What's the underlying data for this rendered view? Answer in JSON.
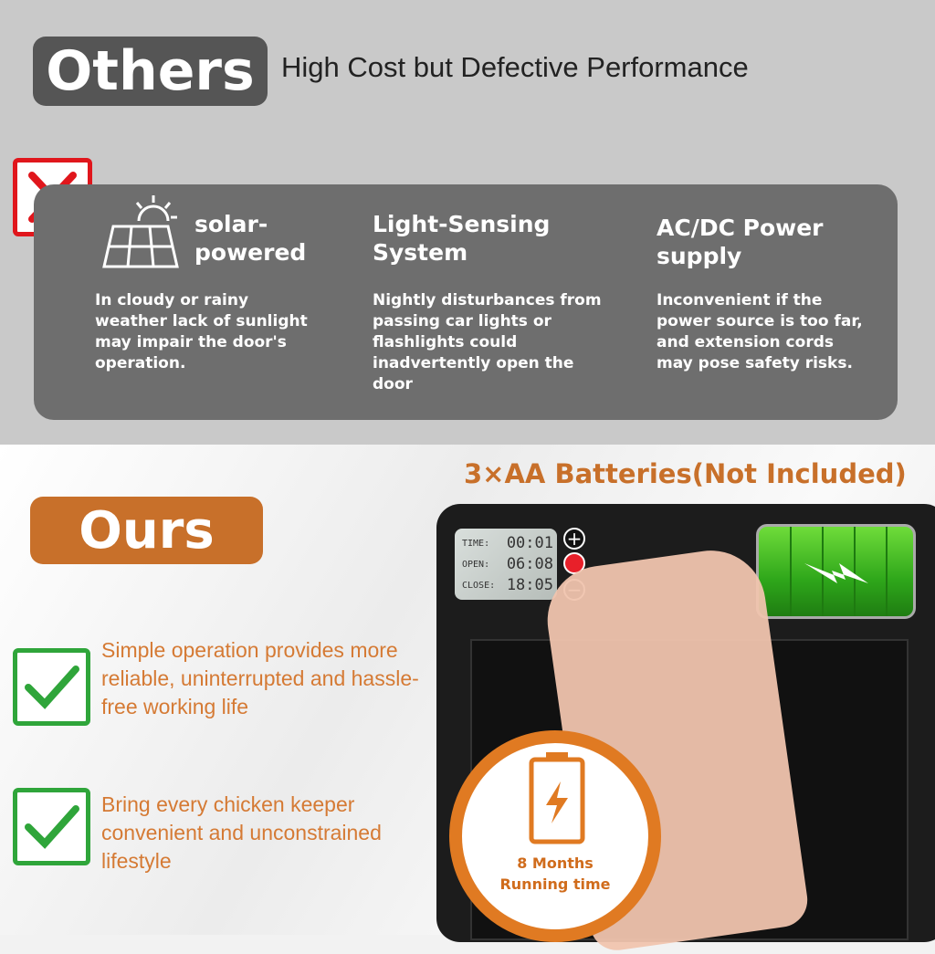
{
  "others": {
    "badge": "Others",
    "subtitle": "High Cost but Defective Performance",
    "items": [
      {
        "title": "solar-\npowered",
        "text": "In cloudy or rainy weather lack of sunlight may impair the door's operation.",
        "icon": "solar-panel-icon"
      },
      {
        "title": "Light-Sensing System",
        "text": "Nightly disturbances from passing car lights or flashlights could inadvertently open the door"
      },
      {
        "title": "AC/DC Power supply",
        "text": "Inconvenient if the power source is too far, and extension cords may pose safety risks."
      }
    ]
  },
  "ours": {
    "badge": "Ours",
    "features": [
      "Simple operation provides more reliable, uninterrupted and hassle-free working life",
      "Bring every chicken keeper convenient and unconstrained lifestyle"
    ]
  },
  "product": {
    "battery_title": "3×AA Batteries(Not Included)",
    "lcd": [
      {
        "label": "TIME:",
        "value": "00:01"
      },
      {
        "label": "OPEN:",
        "value": "06:08"
      },
      {
        "label": "CLOSE:",
        "value": "18:05"
      }
    ],
    "runtime_line1": "8 Months",
    "runtime_line2": "Running time"
  },
  "colors": {
    "orange": "#c8702a",
    "green": "#2fa53a",
    "red": "#e0161c",
    "panel": "#6e6e6e"
  }
}
